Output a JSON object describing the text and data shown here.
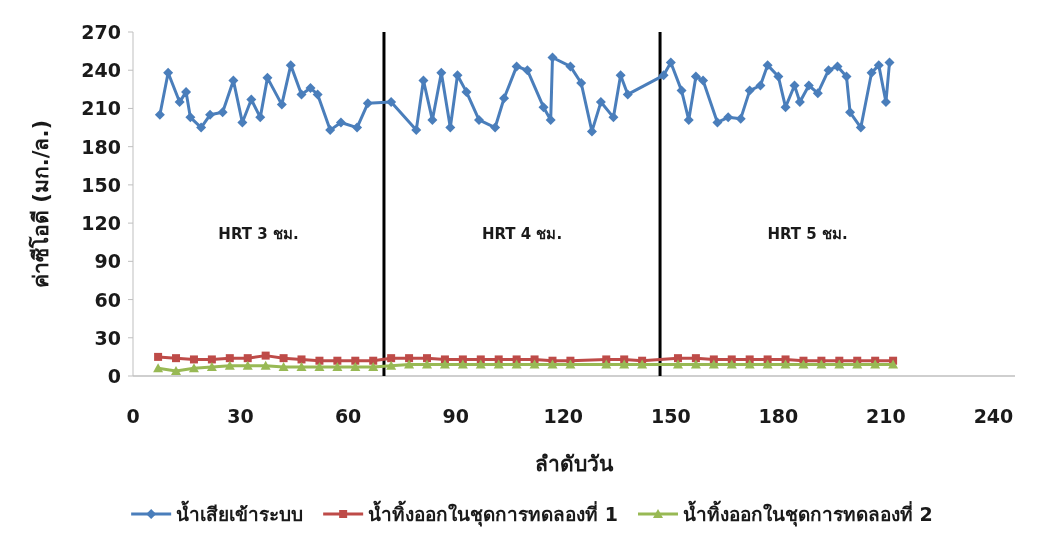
{
  "chart_data": {
    "type": "line",
    "xlabel": "ลำดับวัน",
    "ylabel": "ค่าซีโอดี (มก./ล.)",
    "xlim": [
      0,
      246
    ],
    "xticks": [
      0,
      30,
      60,
      90,
      120,
      150,
      180,
      210,
      240
    ],
    "ylim": [
      0,
      270
    ],
    "yticks": [
      0,
      30,
      60,
      90,
      120,
      150,
      180,
      210,
      240,
      270
    ],
    "grid": false,
    "legend": "bottom",
    "ref_lines": [
      {
        "axis": "x",
        "value": 70,
        "color": "#000000"
      },
      {
        "axis": "x",
        "value": 147,
        "color": "#000000"
      }
    ],
    "annotations": [
      "HRT 3 ชม.",
      "HRT 4 ชม.",
      "HRT 5 ชม."
    ],
    "series": [
      {
        "name": "น้ำเสียเข้าระบบ",
        "color": "#4a7ebb",
        "marker": "diamond",
        "x": [
          7.5,
          9.8,
          13,
          14.8,
          16,
          19,
          21.5,
          25,
          28,
          30.5,
          33,
          35.5,
          37.5,
          41.5,
          44,
          47,
          49.5,
          51.5,
          55,
          58,
          62.5,
          65.5,
          72,
          79,
          81,
          83.5,
          86,
          88.5,
          90.5,
          93,
          96.5,
          101,
          103.5,
          107,
          110,
          114.5,
          116.5,
          117,
          122,
          125,
          128,
          130.5,
          134,
          136,
          138,
          148,
          150,
          153,
          155,
          157,
          159,
          163,
          166,
          169.5,
          172,
          175,
          177,
          180,
          182,
          184.5,
          186,
          188.5,
          191,
          194,
          196.5,
          199,
          200,
          203,
          206,
          208,
          210,
          211
        ],
        "values": [
          205,
          238,
          215,
          223,
          203,
          195,
          205,
          207,
          232,
          199,
          217,
          203,
          234,
          213,
          244,
          221,
          226,
          221,
          193,
          199,
          195,
          214,
          215,
          193,
          232,
          201,
          238,
          195,
          236,
          223,
          201,
          195,
          218,
          243,
          240,
          211,
          201,
          250,
          243,
          230,
          192,
          215,
          203,
          236,
          221,
          236,
          246,
          224,
          201,
          235,
          232,
          199,
          203,
          202,
          224,
          228,
          244,
          235,
          211,
          228,
          215,
          228,
          222,
          240,
          243,
          235,
          207,
          195,
          238,
          244,
          215,
          246
        ]
      },
      {
        "name": "น้ำทิ้งออกในชุดการทดลองที่ 1",
        "color": "#be4b48",
        "marker": "square",
        "x": [
          7,
          12,
          17,
          22,
          27,
          32,
          37,
          42,
          47,
          52,
          57,
          62,
          67,
          72,
          77,
          82,
          87,
          92,
          97,
          102,
          107,
          112,
          117,
          122,
          132,
          137,
          142,
          152,
          157,
          162,
          167,
          172,
          177,
          182,
          187,
          192,
          197,
          202,
          207,
          212
        ],
        "values": [
          15,
          14,
          13,
          13,
          14,
          14,
          16,
          14,
          13,
          12,
          12,
          12,
          12,
          14,
          14,
          14,
          13,
          13,
          13,
          13,
          13,
          13,
          12,
          12,
          13,
          13,
          12,
          14,
          14,
          13,
          13,
          13,
          13,
          13,
          12,
          12,
          12,
          12,
          12,
          12
        ]
      },
      {
        "name": "น้ำทิ้งออกในชุดการทดลองที่ 2",
        "color": "#98b954",
        "marker": "triangle",
        "x": [
          7,
          12,
          17,
          22,
          27,
          32,
          37,
          42,
          47,
          52,
          57,
          62,
          67,
          72,
          77,
          82,
          87,
          92,
          97,
          102,
          107,
          112,
          117,
          122,
          132,
          137,
          142,
          152,
          157,
          162,
          167,
          172,
          177,
          182,
          187,
          192,
          197,
          202,
          207,
          212
        ],
        "values": [
          6,
          4,
          6,
          7,
          8,
          8,
          8,
          7,
          7,
          7,
          7,
          7,
          7,
          8,
          9,
          9,
          9,
          9,
          9,
          9,
          9,
          9,
          9,
          9,
          9,
          9,
          9,
          9,
          9,
          9,
          9,
          9,
          9,
          9,
          9,
          9,
          9,
          9,
          9,
          9
        ]
      }
    ]
  }
}
